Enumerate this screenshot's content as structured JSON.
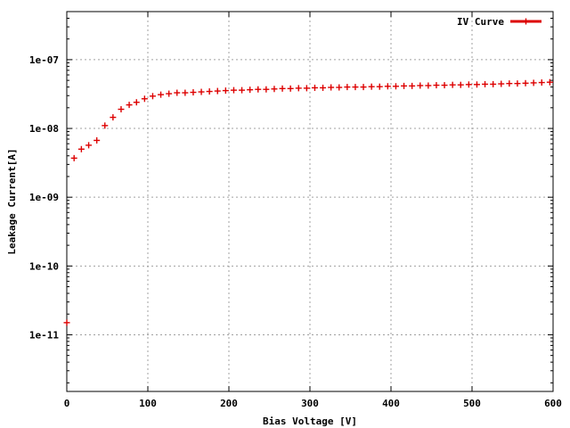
{
  "chart_data": {
    "type": "scatter",
    "xlabel": "Bias Voltage [V]",
    "ylabel": "Leakage Current[A]",
    "xlim": [
      0,
      600
    ],
    "ylim": [
      1.5e-12,
      5e-07
    ],
    "yscale": "log",
    "grid": true,
    "legend_position": "top-right",
    "x_ticks": [
      0,
      100,
      200,
      300,
      400,
      500,
      600
    ],
    "x_tick_labels": [
      "0",
      "100",
      "200",
      "300",
      "400",
      "500",
      "600"
    ],
    "y_ticks": [
      1e-11,
      1e-10,
      1e-09,
      1e-08,
      1e-07
    ],
    "y_tick_labels": [
      "1e-11",
      "1e-10",
      "1e-09",
      "1e-08",
      "1e-07"
    ],
    "series": [
      {
        "name": "IV Curve",
        "color": "#dd0000",
        "marker": "plus",
        "x": [
          0,
          9,
          18,
          27,
          37,
          47,
          57,
          67,
          77,
          86,
          96,
          106,
          116,
          126,
          136,
          146,
          156,
          166,
          176,
          186,
          196,
          206,
          216,
          226,
          236,
          246,
          256,
          266,
          276,
          286,
          296,
          306,
          316,
          326,
          336,
          346,
          356,
          366,
          376,
          386,
          396,
          406,
          416,
          426,
          436,
          446,
          456,
          466,
          476,
          486,
          496,
          506,
          516,
          526,
          536,
          546,
          556,
          566,
          576,
          586,
          596
        ],
        "y": [
          1.5e-11,
          3.7e-09,
          5e-09,
          5.7e-09,
          6.7e-09,
          1.1e-08,
          1.45e-08,
          1.9e-08,
          2.2e-08,
          2.4e-08,
          2.7e-08,
          2.95e-08,
          3.1e-08,
          3.2e-08,
          3.3e-08,
          3.3e-08,
          3.35e-08,
          3.4e-08,
          3.45e-08,
          3.5e-08,
          3.55e-08,
          3.6e-08,
          3.6e-08,
          3.65e-08,
          3.7e-08,
          3.7e-08,
          3.75e-08,
          3.8e-08,
          3.8e-08,
          3.85e-08,
          3.85e-08,
          3.9e-08,
          3.9e-08,
          3.95e-08,
          3.95e-08,
          4e-08,
          4e-08,
          4e-08,
          4.05e-08,
          4.05e-08,
          4.1e-08,
          4.1e-08,
          4.15e-08,
          4.15e-08,
          4.2e-08,
          4.2e-08,
          4.25e-08,
          4.25e-08,
          4.3e-08,
          4.3e-08,
          4.35e-08,
          4.35e-08,
          4.4e-08,
          4.4e-08,
          4.45e-08,
          4.5e-08,
          4.5e-08,
          4.55e-08,
          4.6e-08,
          4.65e-08,
          4.7e-08
        ]
      }
    ]
  }
}
